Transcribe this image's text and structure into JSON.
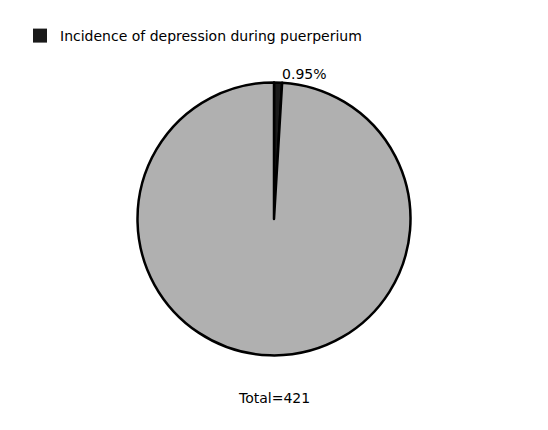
{
  "chart_data": {
    "type": "pie",
    "categories": [
      "Incidence of depression during puerperium",
      null
    ],
    "values": [
      0.95,
      99.05
    ],
    "colors": [
      "#1a1a1a",
      "#b0b0b0"
    ],
    "data_labels": true,
    "value_labels": [
      "0.95%",
      null
    ],
    "annotations": [
      "Total=421"
    ],
    "legend": "upper left"
  }
}
